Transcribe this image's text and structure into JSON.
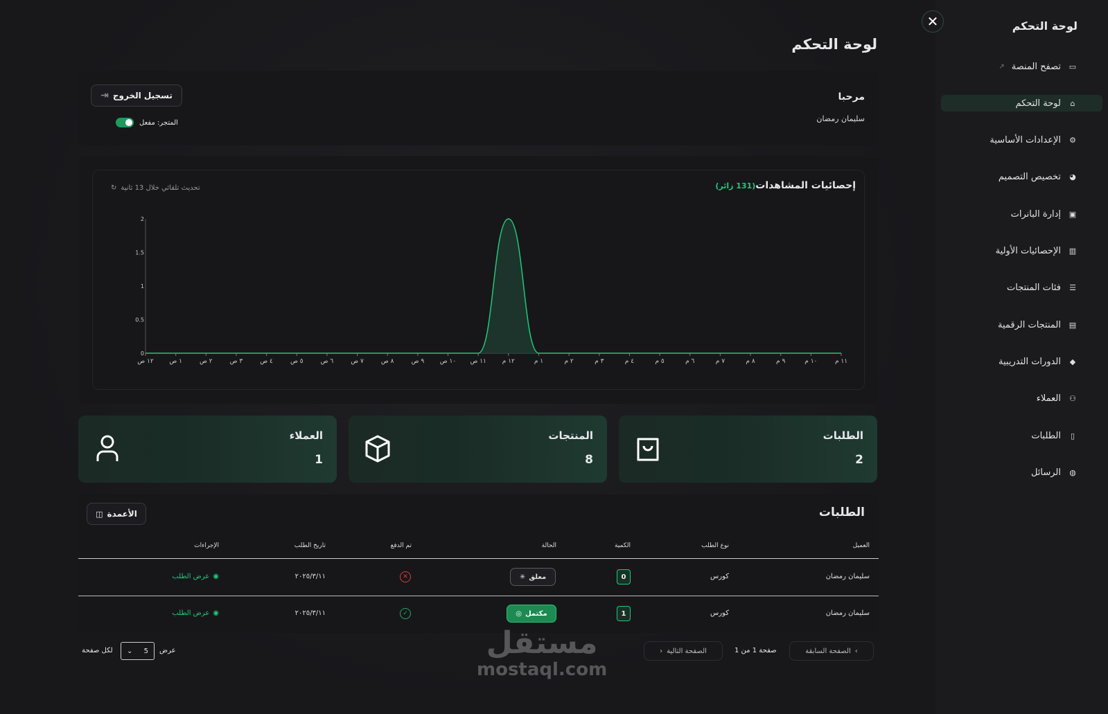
{
  "sidebar": {
    "title": "لوحة التحكم",
    "items": [
      {
        "label": "تصفح المنصة",
        "icon": "monitor-icon",
        "external": true
      },
      {
        "label": "لوحة التحكم",
        "icon": "home-icon",
        "active": true
      },
      {
        "label": "الإعدادات الأساسية",
        "icon": "gears-icon"
      },
      {
        "label": "تخصيص التصميم",
        "icon": "palette-icon"
      },
      {
        "label": "إدارة البانرات",
        "icon": "image-icon"
      },
      {
        "label": "الإحصائيات الأولية",
        "icon": "bar-chart-icon"
      },
      {
        "label": "فئات المنتجات",
        "icon": "list-icon"
      },
      {
        "label": "المنتجات الرقمية",
        "icon": "boxes-icon"
      },
      {
        "label": "الدورات التدريبية",
        "icon": "graduation-cap-icon"
      },
      {
        "label": "العملاء",
        "icon": "users-icon"
      },
      {
        "label": "الطلبات",
        "icon": "clipboard-icon"
      },
      {
        "label": "الرسائل",
        "icon": "chat-icon"
      }
    ]
  },
  "header": {
    "title": "لوحة التحكم"
  },
  "welcome": {
    "greeting": "مرحبا",
    "user": "سليمان رمضان",
    "logout": "تسجيل الخروج",
    "store_status": "المتجر: مفعل",
    "store_enabled": true
  },
  "views": {
    "title": "إحصائيات المشاهدات",
    "visitors": "(131 زائر)",
    "refresh": "تحديث تلقائي خلال 13 ثانية"
  },
  "chart_data": {
    "type": "area",
    "categories": [
      "١٢ ص",
      "١ ص",
      "٢ ص",
      "٣ ص",
      "٤ ص",
      "٥ ص",
      "٦ ص",
      "٧ ص",
      "٨ ص",
      "٩ ص",
      "١٠ ص",
      "١١ ص",
      "١٢ م",
      "١ م",
      "٢ م",
      "٣ م",
      "٤ م",
      "٥ م",
      "٦ م",
      "٧ م",
      "٨ م",
      "٩ م",
      "١٠ م",
      "١١ م"
    ],
    "values": [
      0,
      0,
      0,
      0,
      0,
      0,
      0,
      0,
      0,
      0,
      0,
      0,
      2,
      0,
      0,
      0,
      0,
      0,
      0,
      0,
      0,
      0,
      0,
      0
    ],
    "yticks": [
      "0",
      "0.5",
      "1",
      "1.5",
      "2"
    ],
    "ylim": [
      0,
      2
    ],
    "grid": false,
    "color": "#22c77a"
  },
  "stats": [
    {
      "label": "الطلبات",
      "value": "2",
      "icon": "shopping-bag-icon"
    },
    {
      "label": "المنتجات",
      "value": "8",
      "icon": "box-icon"
    },
    {
      "label": "العملاء",
      "value": "1",
      "icon": "user-icon"
    }
  ],
  "orders": {
    "title": "الطلبات",
    "columns_button": "الأعمدة",
    "headers": [
      "العميل",
      "نوع الطلب",
      "الكمية",
      "الحالة",
      "تم الدفع",
      "تاريخ الطلب",
      "الإجراءات"
    ],
    "rows": [
      {
        "customer": "سليمان رمضان",
        "type": "كورس",
        "qty": "0",
        "status": "معلق",
        "paid": false,
        "date": "٢٠٢٥/٣/١١",
        "action": "عرض الطلب"
      },
      {
        "customer": "سليمان رمضان",
        "type": "كورس",
        "qty": "1",
        "status": "مكتمل",
        "paid": true,
        "date": "٢٠٢٥/٣/١١",
        "action": "عرض الطلب"
      }
    ]
  },
  "pagination": {
    "prev": "الصفحة السابقة",
    "info": "صفحة 1 من 1",
    "next": "الصفحة التالية",
    "show": "عرض",
    "per_page_value": "5",
    "per_page": "لكل صفحة"
  },
  "watermark": {
    "ar": "مستقل",
    "en": "mostaql.com"
  }
}
